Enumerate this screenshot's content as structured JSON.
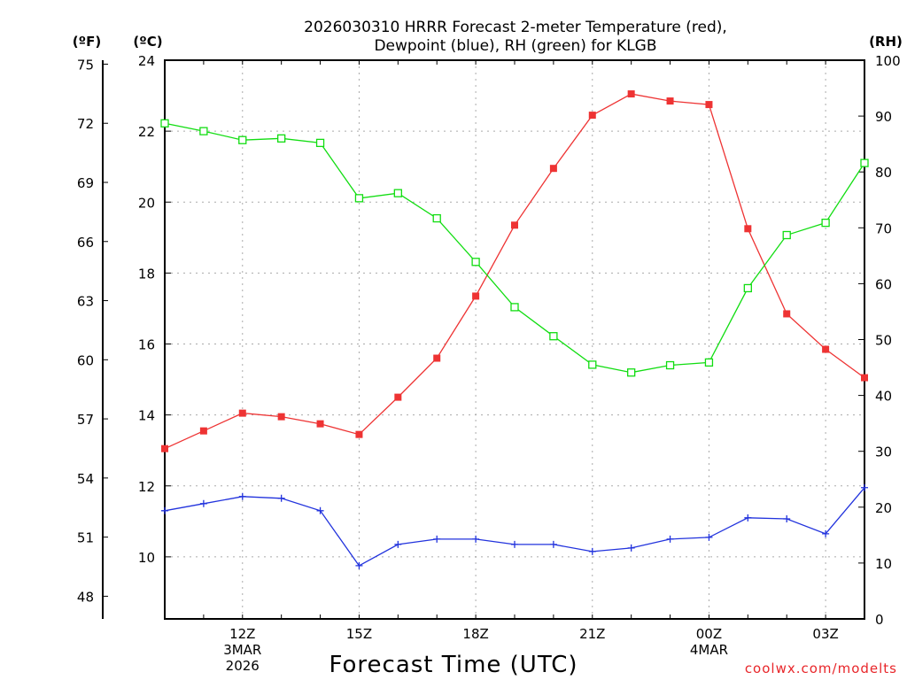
{
  "chart_data": {
    "type": "line",
    "title_line1": "2026030310 HRRR Forecast 2-meter Temperature (red),",
    "title_line2": "Dewpoint (blue), RH (green) for KLGB",
    "xlabel": "Forecast Time (UTC)",
    "watermark": "coolwx.com/modelts",
    "units": {
      "fahrenheit": "(ºF)",
      "celsius": "(ºC)",
      "rh": "(RH)"
    },
    "x_hours": [
      10,
      11,
      12,
      13,
      14,
      15,
      16,
      17,
      18,
      19,
      20,
      21,
      22,
      23,
      24,
      25,
      26,
      27,
      28
    ],
    "x_ticks": [
      {
        "hour": 12,
        "lines": [
          "12Z",
          "3MAR",
          "2026"
        ]
      },
      {
        "hour": 15,
        "lines": [
          "15Z"
        ]
      },
      {
        "hour": 18,
        "lines": [
          "18Z"
        ]
      },
      {
        "hour": 21,
        "lines": [
          "21Z"
        ]
      },
      {
        "hour": 24,
        "lines": [
          "00Z",
          "4MAR"
        ]
      },
      {
        "hour": 27,
        "lines": [
          "03Z"
        ]
      }
    ],
    "y_left_celsius": {
      "min": 8.25,
      "max": 24.0,
      "ticks": [
        "10",
        "12",
        "14",
        "16",
        "18",
        "20",
        "22",
        "24"
      ]
    },
    "y_left_fahrenheit": {
      "ticks": [
        "48",
        "51",
        "54",
        "57",
        "60",
        "63",
        "66",
        "69",
        "72",
        "75"
      ]
    },
    "y_right_rh": {
      "min": 0,
      "max": 100,
      "ticks": [
        "0",
        "10",
        "20",
        "30",
        "40",
        "50",
        "60",
        "70",
        "80",
        "90",
        "100"
      ]
    },
    "grid": true,
    "series": [
      {
        "name": "Temperature",
        "axis": "celsius",
        "color": "#ee3333",
        "marker": "filled-square",
        "values": [
          13.05,
          13.55,
          14.05,
          13.95,
          13.75,
          13.45,
          14.5,
          15.6,
          17.35,
          19.35,
          20.95,
          22.45,
          23.05,
          22.85,
          22.75,
          19.25,
          16.85,
          15.85,
          15.05
        ]
      },
      {
        "name": "Dewpoint",
        "axis": "celsius",
        "color": "#2233dd",
        "marker": "plus",
        "values": [
          11.3,
          11.5,
          11.7,
          11.65,
          11.3,
          9.75,
          10.35,
          10.5,
          10.5,
          10.35,
          10.35,
          10.15,
          10.25,
          10.5,
          10.55,
          11.1,
          11.07,
          10.65,
          11.95
        ]
      },
      {
        "name": "RH",
        "axis": "rh",
        "color": "#11dd11",
        "marker": "open-square",
        "values": [
          88.7,
          87.3,
          85.7,
          86.0,
          85.2,
          75.3,
          76.2,
          71.7,
          63.9,
          55.8,
          50.6,
          45.5,
          44.1,
          45.4,
          45.9,
          59.2,
          68.7,
          70.9,
          81.6
        ]
      }
    ]
  }
}
